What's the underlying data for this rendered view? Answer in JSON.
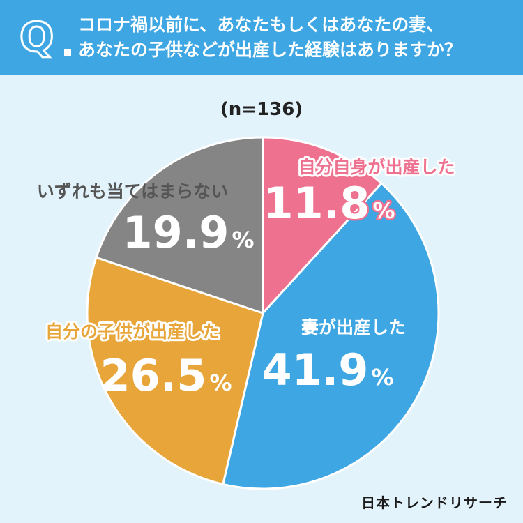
{
  "question": {
    "mark": "Q",
    "line1": "コロナ禍以前に、あなたもしくはあなたの妻、",
    "line2": "あなたの子供などが出産した経験はありますか？"
  },
  "brand": "日本トレンドリサーチ",
  "chart_data": {
    "type": "pie",
    "title": "",
    "sample": "(n=136)",
    "start": "top",
    "direction": "clockwise",
    "unit": "%",
    "slices": [
      {
        "label": "自分自身が出産した",
        "value": 11.8,
        "color": "#ee7290"
      },
      {
        "label": "妻が出産した",
        "value": 41.9,
        "color": "#3ea7e3"
      },
      {
        "label": "自分の子供が出産した",
        "value": 26.5,
        "color": "#e8a63a"
      },
      {
        "label": "いずれも当てはまらない",
        "value": 19.9,
        "color": "#858585"
      }
    ]
  }
}
